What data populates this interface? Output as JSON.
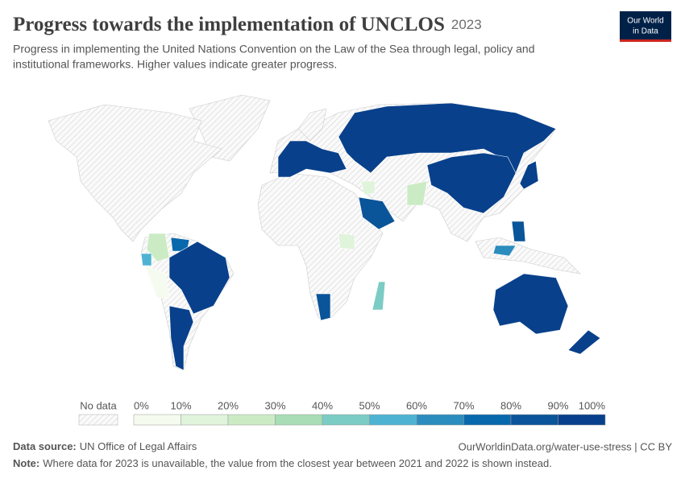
{
  "chart_data": {
    "type": "choropleth",
    "title": "Progress towards the implementation of UNCLOS",
    "year": "2023",
    "subtitle": [
      "Progress in implementing the United Nations Convention on the Law of the Sea through legal, policy and",
      "institutional frameworks. Higher values indicate greater progress."
    ],
    "logo": [
      "Our World",
      "in Data"
    ],
    "values": [
      100,
      100,
      100,
      100,
      80,
      20,
      10,
      10,
      80,
      40,
      80,
      60,
      100,
      100,
      20,
      50,
      0,
      70,
      100,
      100
    ],
    "legend": {
      "no_data": "No data",
      "ticks": [
        {
          "value": 0,
          "label": "0%"
        },
        {
          "value": 10,
          "label": "10%"
        },
        {
          "value": 20,
          "label": "20%"
        },
        {
          "value": 30,
          "label": "30%"
        },
        {
          "value": 40,
          "label": "40%"
        },
        {
          "value": 50,
          "label": "50%"
        },
        {
          "value": 60,
          "label": "60%"
        },
        {
          "value": 70,
          "label": "70%"
        },
        {
          "value": 80,
          "label": "80%"
        },
        {
          "value": 90,
          "label": "90%"
        },
        {
          "value": 100,
          "label": "100%"
        }
      ],
      "colors": [
        "#f5fbee",
        "#e0f3db",
        "#cbebc5",
        "#a8ddb5",
        "#7bccc4",
        "#4eb3d3",
        "#2b8cbe",
        "#0868ac",
        "#0a5499",
        "#08408b"
      ]
    },
    "source_label": "Data source:",
    "source": "UN Office of Legal Affairs",
    "url": "OurWorldinData.org/water-use-stress | CC BY",
    "note_label": "Note:",
    "note": "Where data for 2023 is unavailable, the value from the closest year between 2021 and 2022 is shown instead."
  }
}
